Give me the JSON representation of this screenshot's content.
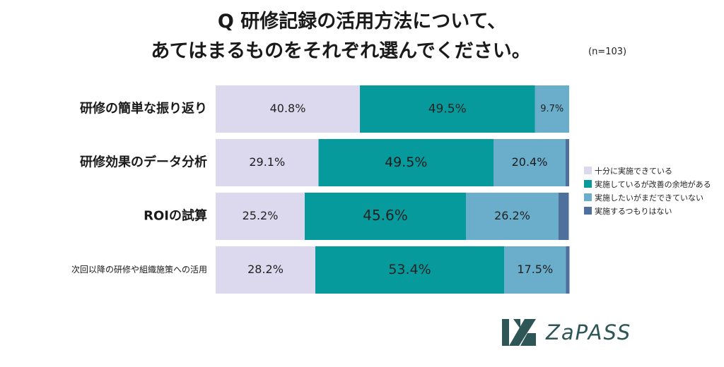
{
  "title_line1": "Q 研修記録の活用方法について、",
  "title_line2": "あてはまるものをそれぞれ選んでください。",
  "sample_note": "(n=103)",
  "logo_text": "ZaPASS",
  "colors": {
    "series": [
      "#dcd9ef",
      "#079a9c",
      "#6aaecb",
      "#4f6f9c"
    ]
  },
  "chart_data": {
    "type": "bar",
    "orientation": "horizontal-stacked-100",
    "categories": [
      "研修の簡単な振り返り",
      "研修効果のデータ分析",
      "ROIの試算",
      "次回以降の研修や組織施策への活用"
    ],
    "series": [
      {
        "name": "十分に実施できている",
        "values": [
          40.8,
          29.1,
          25.2,
          28.2
        ]
      },
      {
        "name": "実施しているが改善の余地がある",
        "values": [
          49.5,
          49.5,
          45.6,
          53.4
        ]
      },
      {
        "name": "実施したいがまだできていない",
        "values": [
          9.7,
          20.4,
          26.2,
          17.5
        ]
      },
      {
        "name": "実施するつもりはない",
        "values": [
          0,
          1.0,
          2.9,
          1.0
        ]
      }
    ],
    "data_labels": [
      [
        "40.8%",
        "49.5%",
        "9.7%"
      ],
      [
        "29.1%",
        "49.5%",
        "20.4%"
      ],
      [
        "25.2%",
        "45.6%",
        "26.2%"
      ],
      [
        "28.2%",
        "53.4%",
        "17.5%"
      ]
    ],
    "xlim": [
      0,
      100
    ],
    "legend_position": "right"
  }
}
